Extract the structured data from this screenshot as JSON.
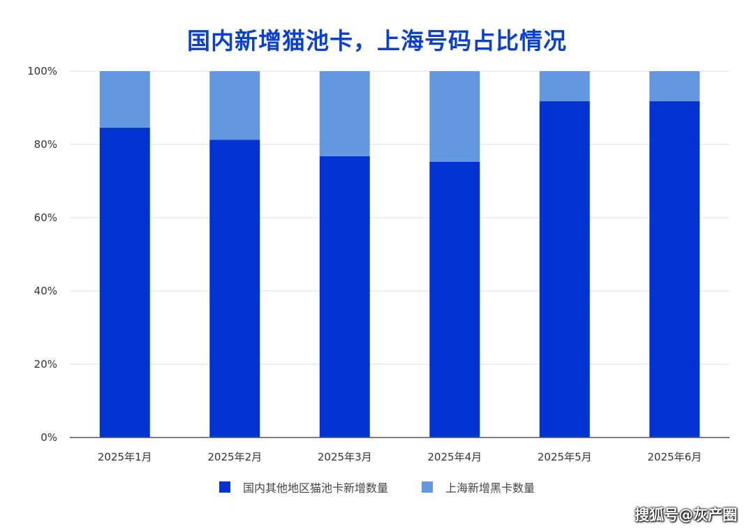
{
  "title": "国内新增猫池卡，上海号码占比情况",
  "watermark": "搜狐号@灰产圈",
  "colors": {
    "domestic_other": "#0033d1",
    "shanghai": "#6398e0",
    "grid": "#dddddd",
    "axis": "#555555"
  },
  "chart_data": {
    "type": "bar",
    "stacked": true,
    "categories": [
      "2025年1月",
      "2025年2月",
      "2025年3月",
      "2025年4月",
      "2025年5月",
      "2025年6月"
    ],
    "series": [
      {
        "name": "国内其他地区猫池卡新增数量",
        "values": [
          84.6,
          81.3,
          76.8,
          75.3,
          91.8,
          91.8
        ]
      },
      {
        "name": "上海新增黑卡数量",
        "values": [
          15.4,
          18.7,
          23.2,
          24.7,
          8.2,
          8.2
        ]
      }
    ],
    "yticks": [
      "0%",
      "20%",
      "40%",
      "60%",
      "80%",
      "100%"
    ],
    "ylim": [
      0,
      100
    ],
    "grid": true,
    "legend_position": "bottom"
  }
}
